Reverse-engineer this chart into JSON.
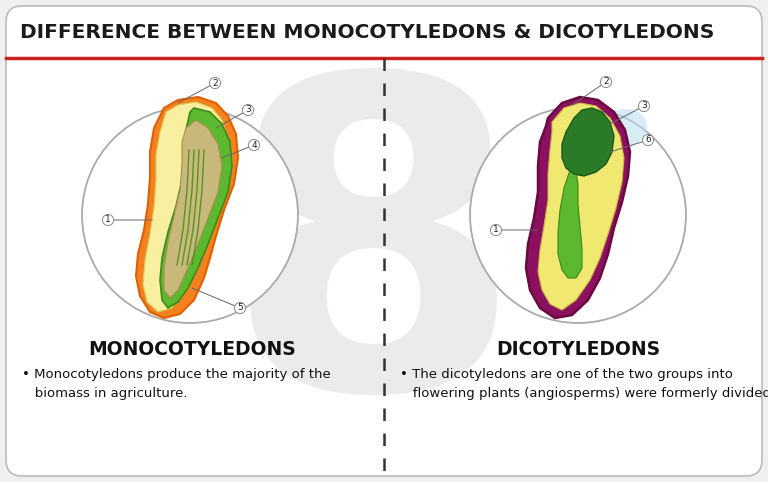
{
  "title": "DIFFERENCE BETWEEN MONOCOTYLEDONS & DICOTYLEDONS",
  "title_fontsize": 14.5,
  "title_color": "#1a1a1a",
  "bg_color": "#f0f0f0",
  "card_bg": "#ffffff",
  "red_line_color": "#cc2222",
  "divider_color": "#333333",
  "left_title": "MONOCOTYLEDONS",
  "right_title": "DICOTYLEDONS",
  "left_bullet": "• Monocotyledons produce the majority of the\n   biomass in agriculture.",
  "right_bullet": "• The dicotyledons are one of the two groups into\n   flowering plants (angiosperms) were formerly divided.",
  "subtitle_fontsize": 13.5,
  "bullet_fontsize": 9.5,
  "watermark_color": "#d8d8d8",
  "title_bar_height": 58,
  "fig_w": 768,
  "fig_h": 482
}
